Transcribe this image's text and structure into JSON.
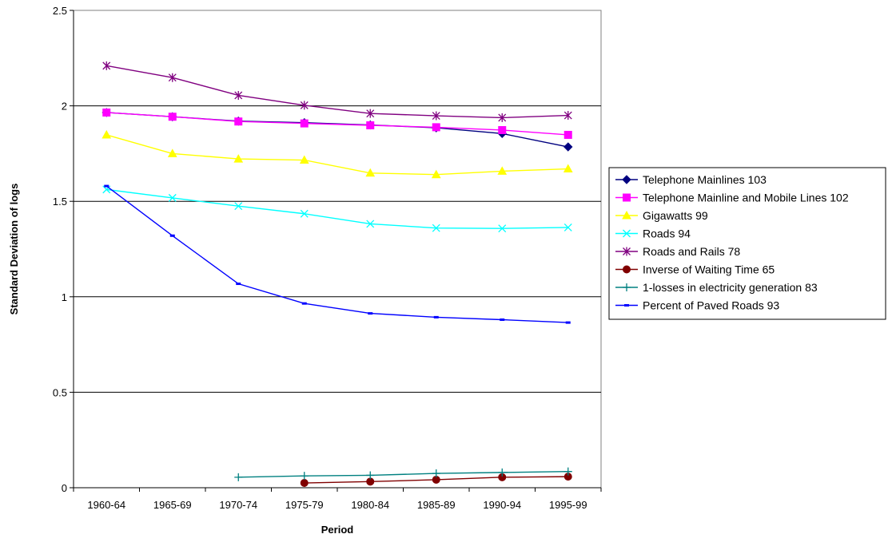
{
  "chart_data": {
    "type": "line",
    "title": "",
    "xlabel": "Period",
    "ylabel": "Standard Deviation of logs",
    "categories": [
      "1960-64",
      "1965-69",
      "1970-74",
      "1975-79",
      "1980-84",
      "1985-89",
      "1990-94",
      "1995-99"
    ],
    "ylim": [
      0,
      2.5
    ],
    "yticks": [
      "0",
      "0.5",
      "1",
      "1.5",
      "2",
      "2.5"
    ],
    "grid": "horizontal",
    "legend_position": "right",
    "series": [
      {
        "name": "Telephone Mainlines 103",
        "color": "#000080",
        "marker": "diamond",
        "values": [
          1.965,
          1.943,
          1.92,
          1.912,
          1.9,
          1.885,
          1.855,
          1.785
        ]
      },
      {
        "name": "Telephone Mainline and Mobile Lines 102",
        "color": "#FF00FF",
        "marker": "square",
        "values": [
          1.965,
          1.943,
          1.918,
          1.908,
          1.898,
          1.888,
          1.873,
          1.848
        ]
      },
      {
        "name": "Gigawatts 99",
        "color": "#FFFF00",
        "marker": "triangle",
        "values": [
          1.848,
          1.75,
          1.722,
          1.716,
          1.648,
          1.64,
          1.658,
          1.67
        ]
      },
      {
        "name": "Roads 94",
        "color": "#00FFFF",
        "marker": "x",
        "values": [
          1.562,
          1.518,
          1.475,
          1.435,
          1.382,
          1.36,
          1.358,
          1.363
        ]
      },
      {
        "name": "Roads and Rails 78",
        "color": "#800080",
        "marker": "star",
        "values": [
          2.21,
          2.148,
          2.055,
          2.003,
          1.96,
          1.948,
          1.938,
          1.95
        ]
      },
      {
        "name": "Inverse of Waiting Time 65",
        "color": "#800000",
        "marker": "circle",
        "values": [
          null,
          null,
          null,
          0.025,
          0.032,
          0.042,
          0.055,
          0.058
        ]
      },
      {
        "name": "1-losses in electricity generation 83",
        "color": "#008080",
        "marker": "plus",
        "values": [
          null,
          null,
          0.055,
          0.062,
          0.065,
          0.075,
          0.08,
          0.085
        ]
      },
      {
        "name": "Percent of Paved Roads 93",
        "color": "#0000FF",
        "marker": "dash",
        "values": [
          1.58,
          1.32,
          1.068,
          0.965,
          0.913,
          0.893,
          0.88,
          0.865
        ]
      }
    ]
  }
}
